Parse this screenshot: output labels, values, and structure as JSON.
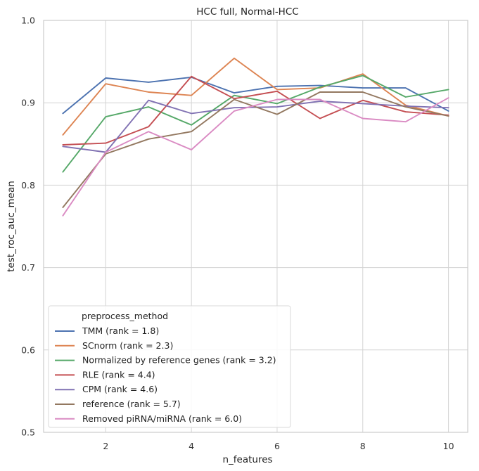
{
  "chart_data": {
    "type": "line",
    "title": "HCC full, Normal-HCC",
    "xlabel": "n_features",
    "ylabel": "test_roc_auc_mean",
    "xlim": [
      0.55,
      10.45
    ],
    "ylim": [
      0.5,
      1.0
    ],
    "xticks": [
      2,
      4,
      6,
      8,
      10
    ],
    "yticks": [
      0.5,
      0.6,
      0.7,
      0.8,
      0.9,
      1.0
    ],
    "ytick_labels": [
      "0.5",
      "0.6",
      "0.7",
      "0.8",
      "0.9",
      "1.0"
    ],
    "grid": true,
    "legend_title": "preprocess_method",
    "legend_position": "lower-left",
    "x": [
      1,
      2,
      3,
      4,
      5,
      6,
      7,
      8,
      9,
      10
    ],
    "series": [
      {
        "name": "TMM (rank = 1.8)",
        "color": "#4c72b0",
        "values": [
          0.887,
          0.93,
          0.925,
          0.931,
          0.912,
          0.92,
          0.921,
          0.918,
          0.918,
          0.89
        ]
      },
      {
        "name": "SCnorm (rank = 2.3)",
        "color": "#dd8452",
        "values": [
          0.861,
          0.923,
          0.913,
          0.909,
          0.954,
          0.916,
          0.918,
          0.935,
          0.897,
          0.884
        ]
      },
      {
        "name": "Normalized by reference genes (rank = 3.2)",
        "color": "#55a868",
        "values": [
          0.816,
          0.883,
          0.895,
          0.873,
          0.909,
          0.899,
          0.919,
          0.933,
          0.907,
          0.916
        ]
      },
      {
        "name": "RLE (rank = 4.4)",
        "color": "#c44e52",
        "values": [
          0.849,
          0.851,
          0.871,
          0.932,
          0.905,
          0.914,
          0.881,
          0.903,
          0.889,
          0.885
        ]
      },
      {
        "name": "CPM (rank = 4.6)",
        "color": "#8172b3",
        "values": [
          0.847,
          0.84,
          0.903,
          0.887,
          0.894,
          0.895,
          0.902,
          0.899,
          0.896,
          0.894
        ]
      },
      {
        "name": "reference (rank = 5.7)",
        "color": "#937860",
        "values": [
          0.773,
          0.838,
          0.856,
          0.865,
          0.904,
          0.886,
          0.913,
          0.913,
          0.895,
          0.884
        ]
      },
      {
        "name": "Removed piRNA/miRNA (rank = 6.0)",
        "color": "#da8bc3",
        "values": [
          0.763,
          0.84,
          0.865,
          0.843,
          0.89,
          0.904,
          0.904,
          0.881,
          0.877,
          0.906
        ]
      }
    ]
  }
}
